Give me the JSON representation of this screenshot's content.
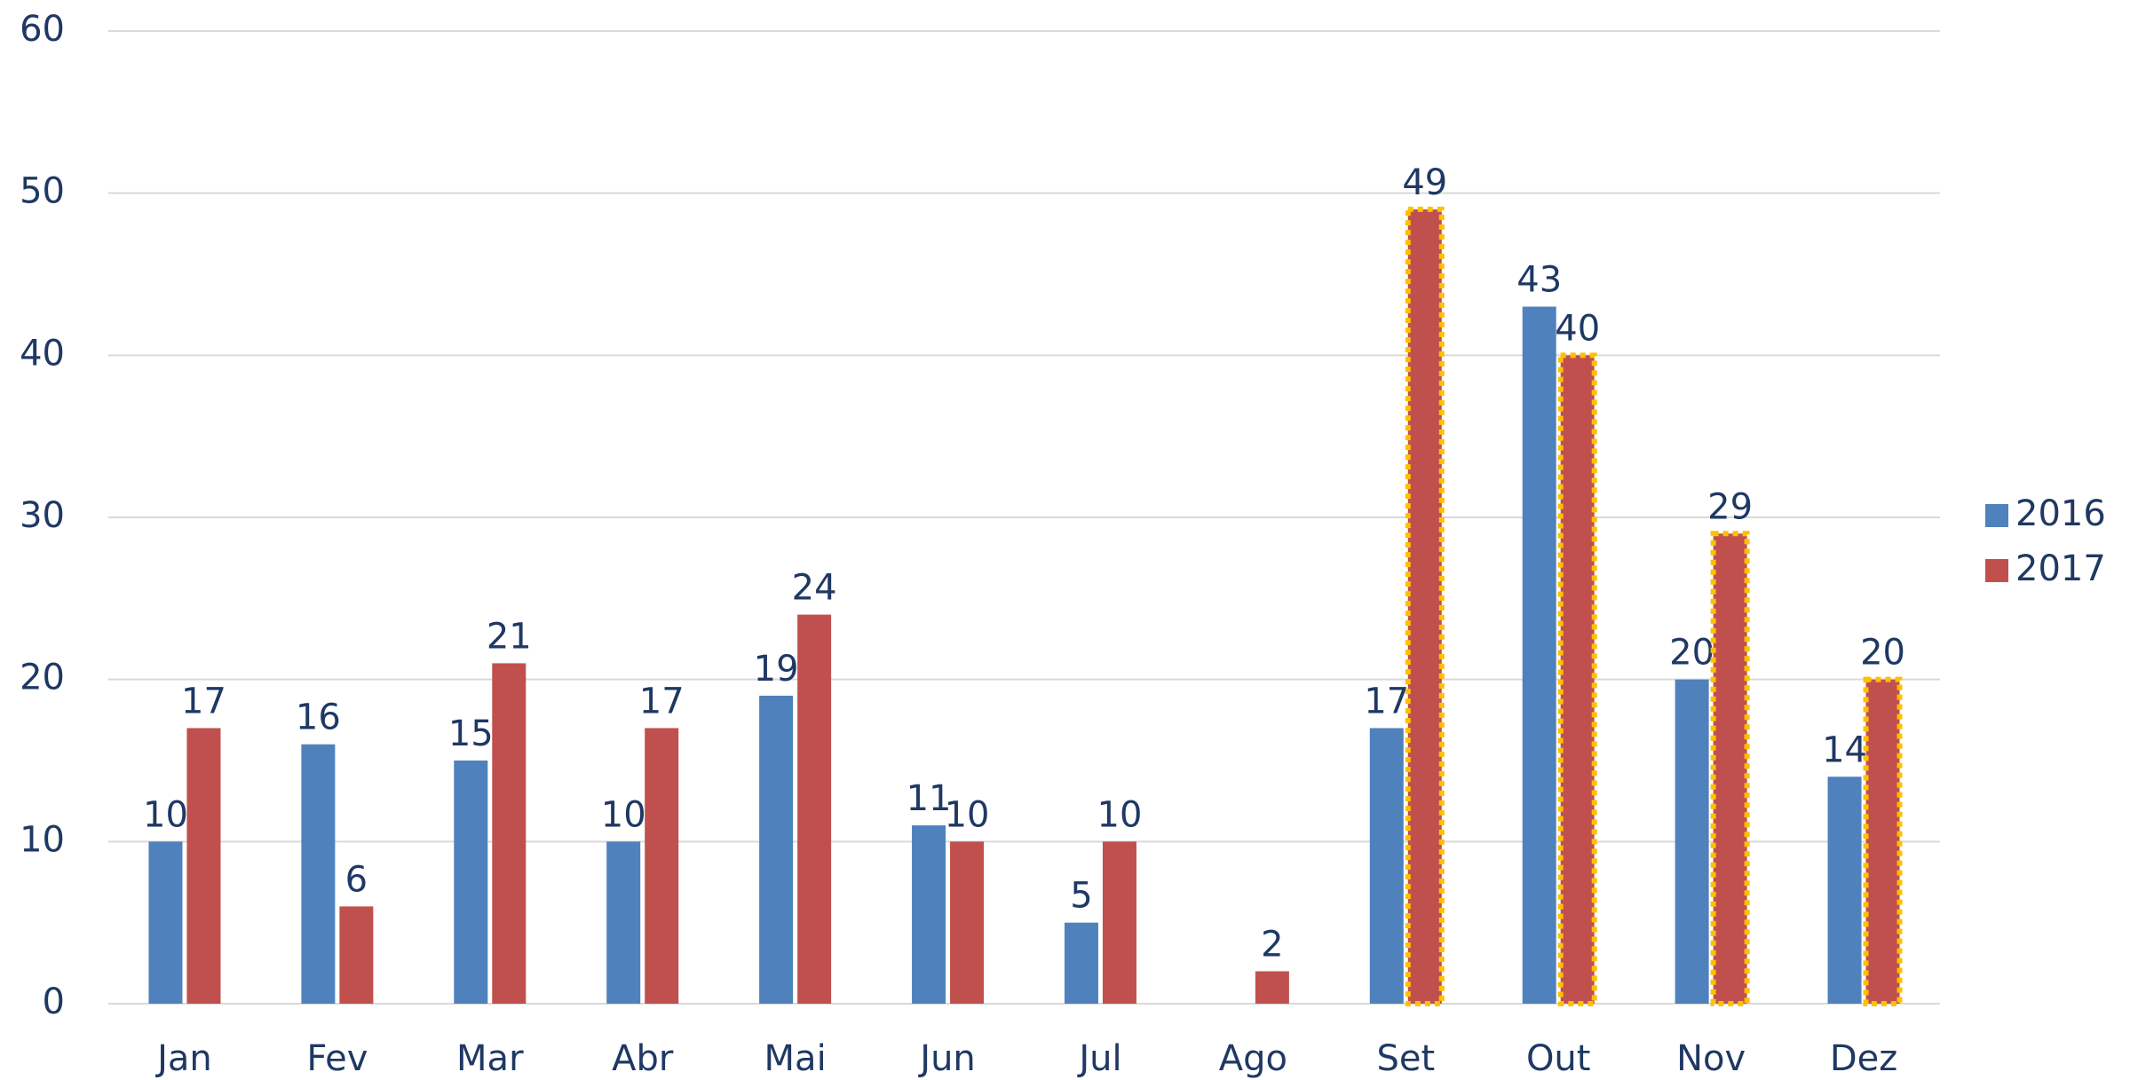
{
  "chart_data": {
    "type": "bar",
    "categories": [
      "Jan",
      "Fev",
      "Mar",
      "Abr",
      "Mai",
      "Jun",
      "Jul",
      "Ago",
      "Set",
      "Out",
      "Nov",
      "Dez"
    ],
    "series": [
      {
        "name": "2016",
        "color": "#4f81bd",
        "values": [
          10,
          16,
          15,
          10,
          19,
          11,
          5,
          null,
          17,
          43,
          20,
          14
        ]
      },
      {
        "name": "2017",
        "color": "#c0504d",
        "values": [
          17,
          6,
          21,
          17,
          24,
          10,
          10,
          2,
          49,
          40,
          29,
          20
        ],
        "outline_color": "#ffc000",
        "outlined": [
          8,
          9,
          10,
          11
        ]
      }
    ],
    "ylim": [
      0,
      60
    ],
    "yticks": [
      0,
      10,
      20,
      30,
      40,
      50,
      60
    ],
    "grid": true,
    "legend": "right"
  }
}
